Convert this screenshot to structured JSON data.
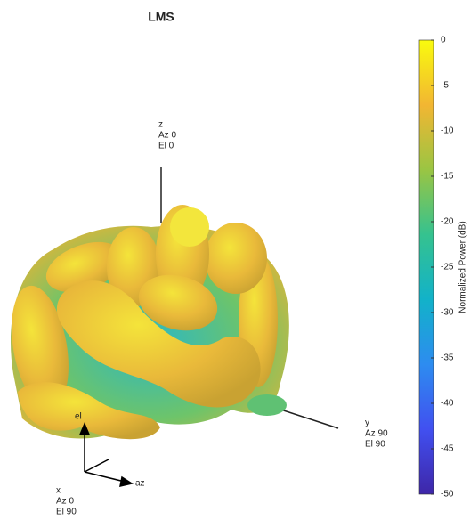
{
  "chart_data": {
    "type": "pattern3d",
    "title": "LMS",
    "colorbar_label": "Normalized Power (dB)",
    "clim": [
      -50,
      0
    ],
    "cticks": [
      0,
      -5,
      -10,
      -15,
      -20,
      -25,
      -30,
      -35,
      -40,
      -45,
      -50
    ],
    "colormap": [
      "#3e26a8",
      "#4150f0",
      "#2d8cf0",
      "#12b2c9",
      "#35c28f",
      "#9ac543",
      "#f2b632",
      "#f9fb0e"
    ],
    "axis_labels": {
      "z": [
        "z",
        "Az 0",
        "El 0"
      ],
      "y": [
        "y",
        "Az 90",
        "El 90"
      ],
      "x": [
        "x",
        "Az 0",
        "El 90"
      ]
    },
    "triad_labels": [
      "el",
      "az"
    ]
  }
}
